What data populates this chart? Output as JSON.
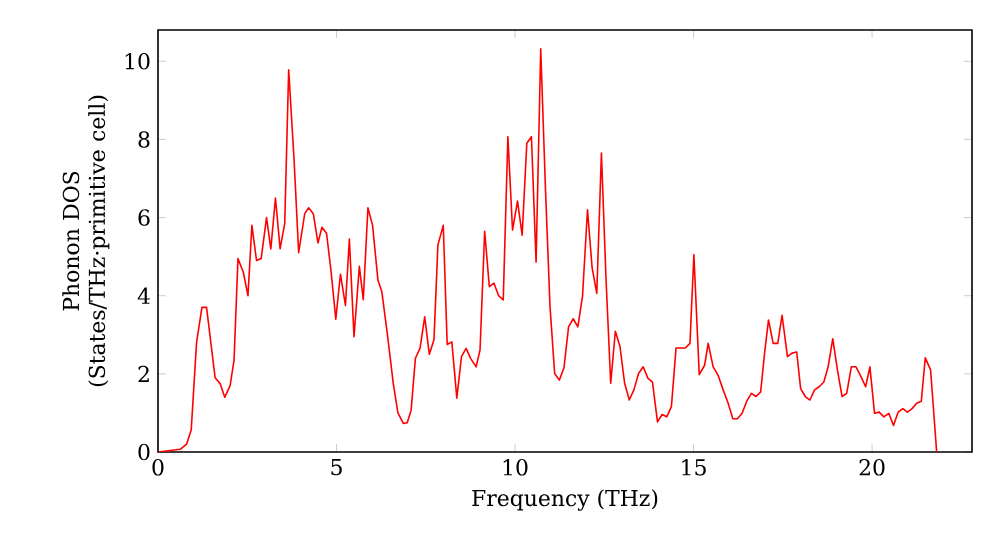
{
  "chart_data": {
    "type": "line",
    "xlabel": "Frequency (THz)",
    "ylabel": "Phonon DOS (States/THz·primitive cell)",
    "xlim": [
      0,
      22.8
    ],
    "ylim": [
      0,
      10.8
    ],
    "xticks": [
      0,
      5,
      10,
      15,
      20
    ],
    "yticks": [
      0,
      2,
      4,
      6,
      8,
      10
    ],
    "grid": false,
    "marker": "none",
    "line_style": "solid",
    "series": [
      {
        "color": "#ff0000",
        "x": [
          0,
          0.62,
          0.8,
          0.93,
          1.08,
          1.23,
          1.36,
          1.6,
          1.74,
          1.87,
          2.02,
          2.13,
          2.24,
          2.39,
          2.52,
          2.63,
          2.76,
          2.89,
          3.04,
          3.16,
          3.29,
          3.42,
          3.55,
          3.66,
          3.81,
          3.94,
          4.11,
          4.22,
          4.35,
          4.48,
          4.59,
          4.72,
          4.85,
          4.98,
          5.11,
          5.25,
          5.36,
          5.49,
          5.64,
          5.75,
          5.88,
          6.01,
          6.16,
          6.27,
          6.42,
          6.59,
          6.72,
          6.87,
          6.98,
          7.09,
          7.21,
          7.34,
          7.47,
          7.6,
          7.73,
          7.84,
          7.99,
          8.1,
          8.23,
          8.37,
          8.5,
          8.63,
          8.76,
          8.91,
          9.02,
          9.15,
          9.28,
          9.41,
          9.54,
          9.67,
          9.8,
          9.93,
          10.07,
          10.2,
          10.33,
          10.46,
          10.59,
          10.72,
          10.85,
          10.98,
          11.11,
          11.24,
          11.37,
          11.5,
          11.63,
          11.76,
          11.89,
          12.03,
          12.16,
          12.29,
          12.42,
          12.55,
          12.68,
          12.81,
          12.94,
          13.07,
          13.2,
          13.33,
          13.46,
          13.59,
          13.72,
          13.85,
          13.99,
          14.12,
          14.25,
          14.38,
          14.51,
          14.77,
          14.9,
          15.01,
          15.16,
          15.31,
          15.41,
          15.55,
          15.69,
          15.83,
          15.97,
          16.1,
          16.23,
          16.36,
          16.49,
          16.62,
          16.75,
          16.88,
          16.99,
          17.1,
          17.23,
          17.36,
          17.48,
          17.63,
          17.76,
          17.89,
          18.0,
          18.13,
          18.26,
          18.39,
          18.52,
          18.65,
          18.77,
          18.9,
          19.03,
          19.16,
          19.29,
          19.42,
          19.55,
          19.69,
          19.82,
          19.94,
          20.07,
          20.2,
          20.33,
          20.47,
          20.6,
          20.73,
          20.86,
          20.99,
          21.12,
          21.25,
          21.38,
          21.49,
          21.64,
          21.81
        ],
        "values": [
          0,
          0.07,
          0.2,
          0.56,
          2.8,
          3.7,
          3.7,
          1.9,
          1.75,
          1.4,
          1.7,
          2.35,
          4.95,
          4.6,
          4.0,
          5.8,
          4.9,
          4.95,
          6.0,
          5.2,
          6.5,
          5.2,
          5.85,
          9.78,
          7.5,
          5.1,
          6.1,
          6.25,
          6.1,
          5.35,
          5.75,
          5.6,
          4.6,
          3.4,
          4.55,
          3.75,
          5.45,
          2.95,
          4.75,
          3.9,
          6.25,
          5.8,
          4.4,
          4.1,
          3.05,
          1.75,
          1.0,
          0.73,
          0.75,
          1.07,
          2.4,
          2.66,
          3.46,
          2.5,
          2.87,
          5.3,
          5.8,
          2.75,
          2.82,
          1.38,
          2.44,
          2.65,
          2.39,
          2.18,
          2.61,
          5.65,
          4.23,
          4.32,
          4.0,
          3.89,
          8.07,
          5.68,
          6.42,
          5.55,
          7.9,
          8.07,
          4.86,
          10.32,
          6.8,
          3.72,
          2.01,
          1.84,
          2.15,
          3.2,
          3.41,
          3.2,
          3.98,
          6.2,
          4.71,
          4.06,
          7.65,
          4.4,
          1.76,
          3.09,
          2.7,
          1.76,
          1.33,
          1.59,
          2.01,
          2.18,
          1.89,
          1.79,
          0.77,
          0.96,
          0.9,
          1.16,
          2.66,
          2.66,
          2.78,
          5.05,
          1.98,
          2.22,
          2.78,
          2.18,
          1.96,
          1.59,
          1.25,
          0.85,
          0.85,
          0.99,
          1.3,
          1.5,
          1.42,
          1.54,
          2.53,
          3.38,
          2.78,
          2.78,
          3.5,
          2.44,
          2.53,
          2.56,
          1.62,
          1.42,
          1.33,
          1.59,
          1.67,
          1.79,
          2.18,
          2.9,
          2.1,
          1.42,
          1.5,
          2.18,
          2.18,
          1.93,
          1.67,
          2.18,
          0.99,
          1.02,
          0.9,
          0.99,
          0.68,
          1.02,
          1.11,
          1.02,
          1.11,
          1.25,
          1.3,
          2.41,
          2.1,
          0
        ]
      }
    ]
  }
}
